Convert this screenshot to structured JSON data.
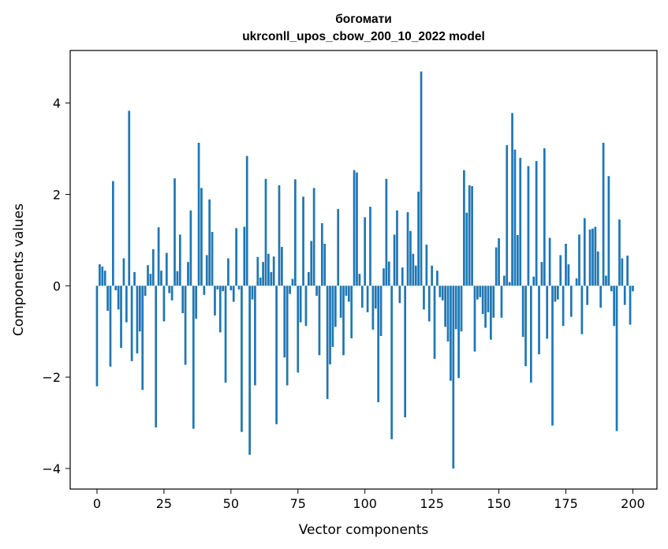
{
  "chart_data": {
    "type": "bar",
    "title_lines": [
      "богомати",
      "ukrconll_upos_cbow_200_10_2022 model"
    ],
    "xlabel": "Vector components",
    "ylabel": "Components values",
    "xlim": [
      -10,
      209
    ],
    "ylim": [
      -4.45,
      5.15
    ],
    "xticks": [
      0,
      25,
      50,
      75,
      100,
      125,
      150,
      175,
      200
    ],
    "yticks": [
      -4,
      -2,
      0,
      2,
      4
    ],
    "ytick_labels": [
      "−4",
      "−2",
      "0",
      "2",
      "4"
    ],
    "grid": false,
    "legend": "none",
    "bar_color": "#1f77b4",
    "values": [
      -2.2,
      0.47,
      0.42,
      0.33,
      -0.55,
      -1.77,
      2.29,
      -0.1,
      -0.52,
      -1.36,
      0.6,
      -0.8,
      3.83,
      -1.65,
      0.3,
      -1.48,
      -1.0,
      -2.28,
      -0.22,
      0.45,
      0.26,
      0.8,
      -3.1,
      1.28,
      0.33,
      -0.78,
      0.72,
      -0.16,
      -0.32,
      2.35,
      0.32,
      1.12,
      -0.6,
      -1.73,
      0.52,
      1.65,
      -3.13,
      -0.72,
      3.13,
      2.14,
      -0.2,
      0.67,
      1.89,
      1.18,
      -0.65,
      -0.08,
      -1.02,
      -0.12,
      -2.12,
      0.6,
      -0.1,
      -0.35,
      1.26,
      -0.08,
      -3.2,
      1.29,
      2.84,
      -3.7,
      -0.3,
      -2.18,
      0.63,
      0.18,
      0.52,
      2.34,
      0.7,
      0.3,
      0.64,
      -3.03,
      2.2,
      0.85,
      -1.57,
      -2.18,
      -0.18,
      0.15,
      2.33,
      -1.9,
      -0.8,
      1.95,
      -0.88,
      0.3,
      0.98,
      2.14,
      -0.22,
      -1.52,
      1.37,
      0.92,
      -2.48,
      -1.72,
      -1.34,
      -0.9,
      1.68,
      -0.7,
      -1.52,
      -0.22,
      -0.35,
      -1.15,
      2.53,
      2.48,
      0.26,
      -0.48,
      1.5,
      -0.58,
      1.73,
      -0.96,
      -0.5,
      -2.55,
      -1.1,
      0.38,
      2.34,
      0.53,
      -3.36,
      1.12,
      1.65,
      -0.38,
      0.4,
      -2.88,
      1.61,
      1.2,
      0.7,
      0.44,
      2.06,
      4.69,
      -0.52,
      0.9,
      -0.78,
      0.44,
      -1.6,
      0.33,
      -0.25,
      -0.32,
      -0.9,
      -1.22,
      -2.08,
      -4.0,
      -0.95,
      -2.02,
      -1.0,
      2.53,
      1.6,
      2.2,
      2.18,
      -1.44,
      -0.3,
      -0.25,
      -0.62,
      -0.92,
      -0.58,
      -1.18,
      -0.7,
      0.84,
      1.04,
      -0.7,
      0.22,
      3.08,
      0.08,
      3.78,
      2.98,
      1.11,
      2.8,
      -1.12,
      -1.76,
      2.62,
      -2.12,
      0.2,
      2.73,
      -1.5,
      0.52,
      3.01,
      -1.16,
      1.05,
      -3.06,
      -0.35,
      -0.3,
      0.67,
      -0.88,
      0.92,
      0.47,
      -0.68,
      0.0,
      0.16,
      1.12,
      -1.06,
      1.48,
      -0.42,
      1.23,
      1.25,
      1.29,
      0.75,
      -0.48,
      3.13,
      0.22,
      2.4,
      -0.12,
      -0.88,
      -3.18,
      1.45,
      0.6,
      -0.42,
      0.66,
      -0.85,
      -0.12
    ]
  }
}
